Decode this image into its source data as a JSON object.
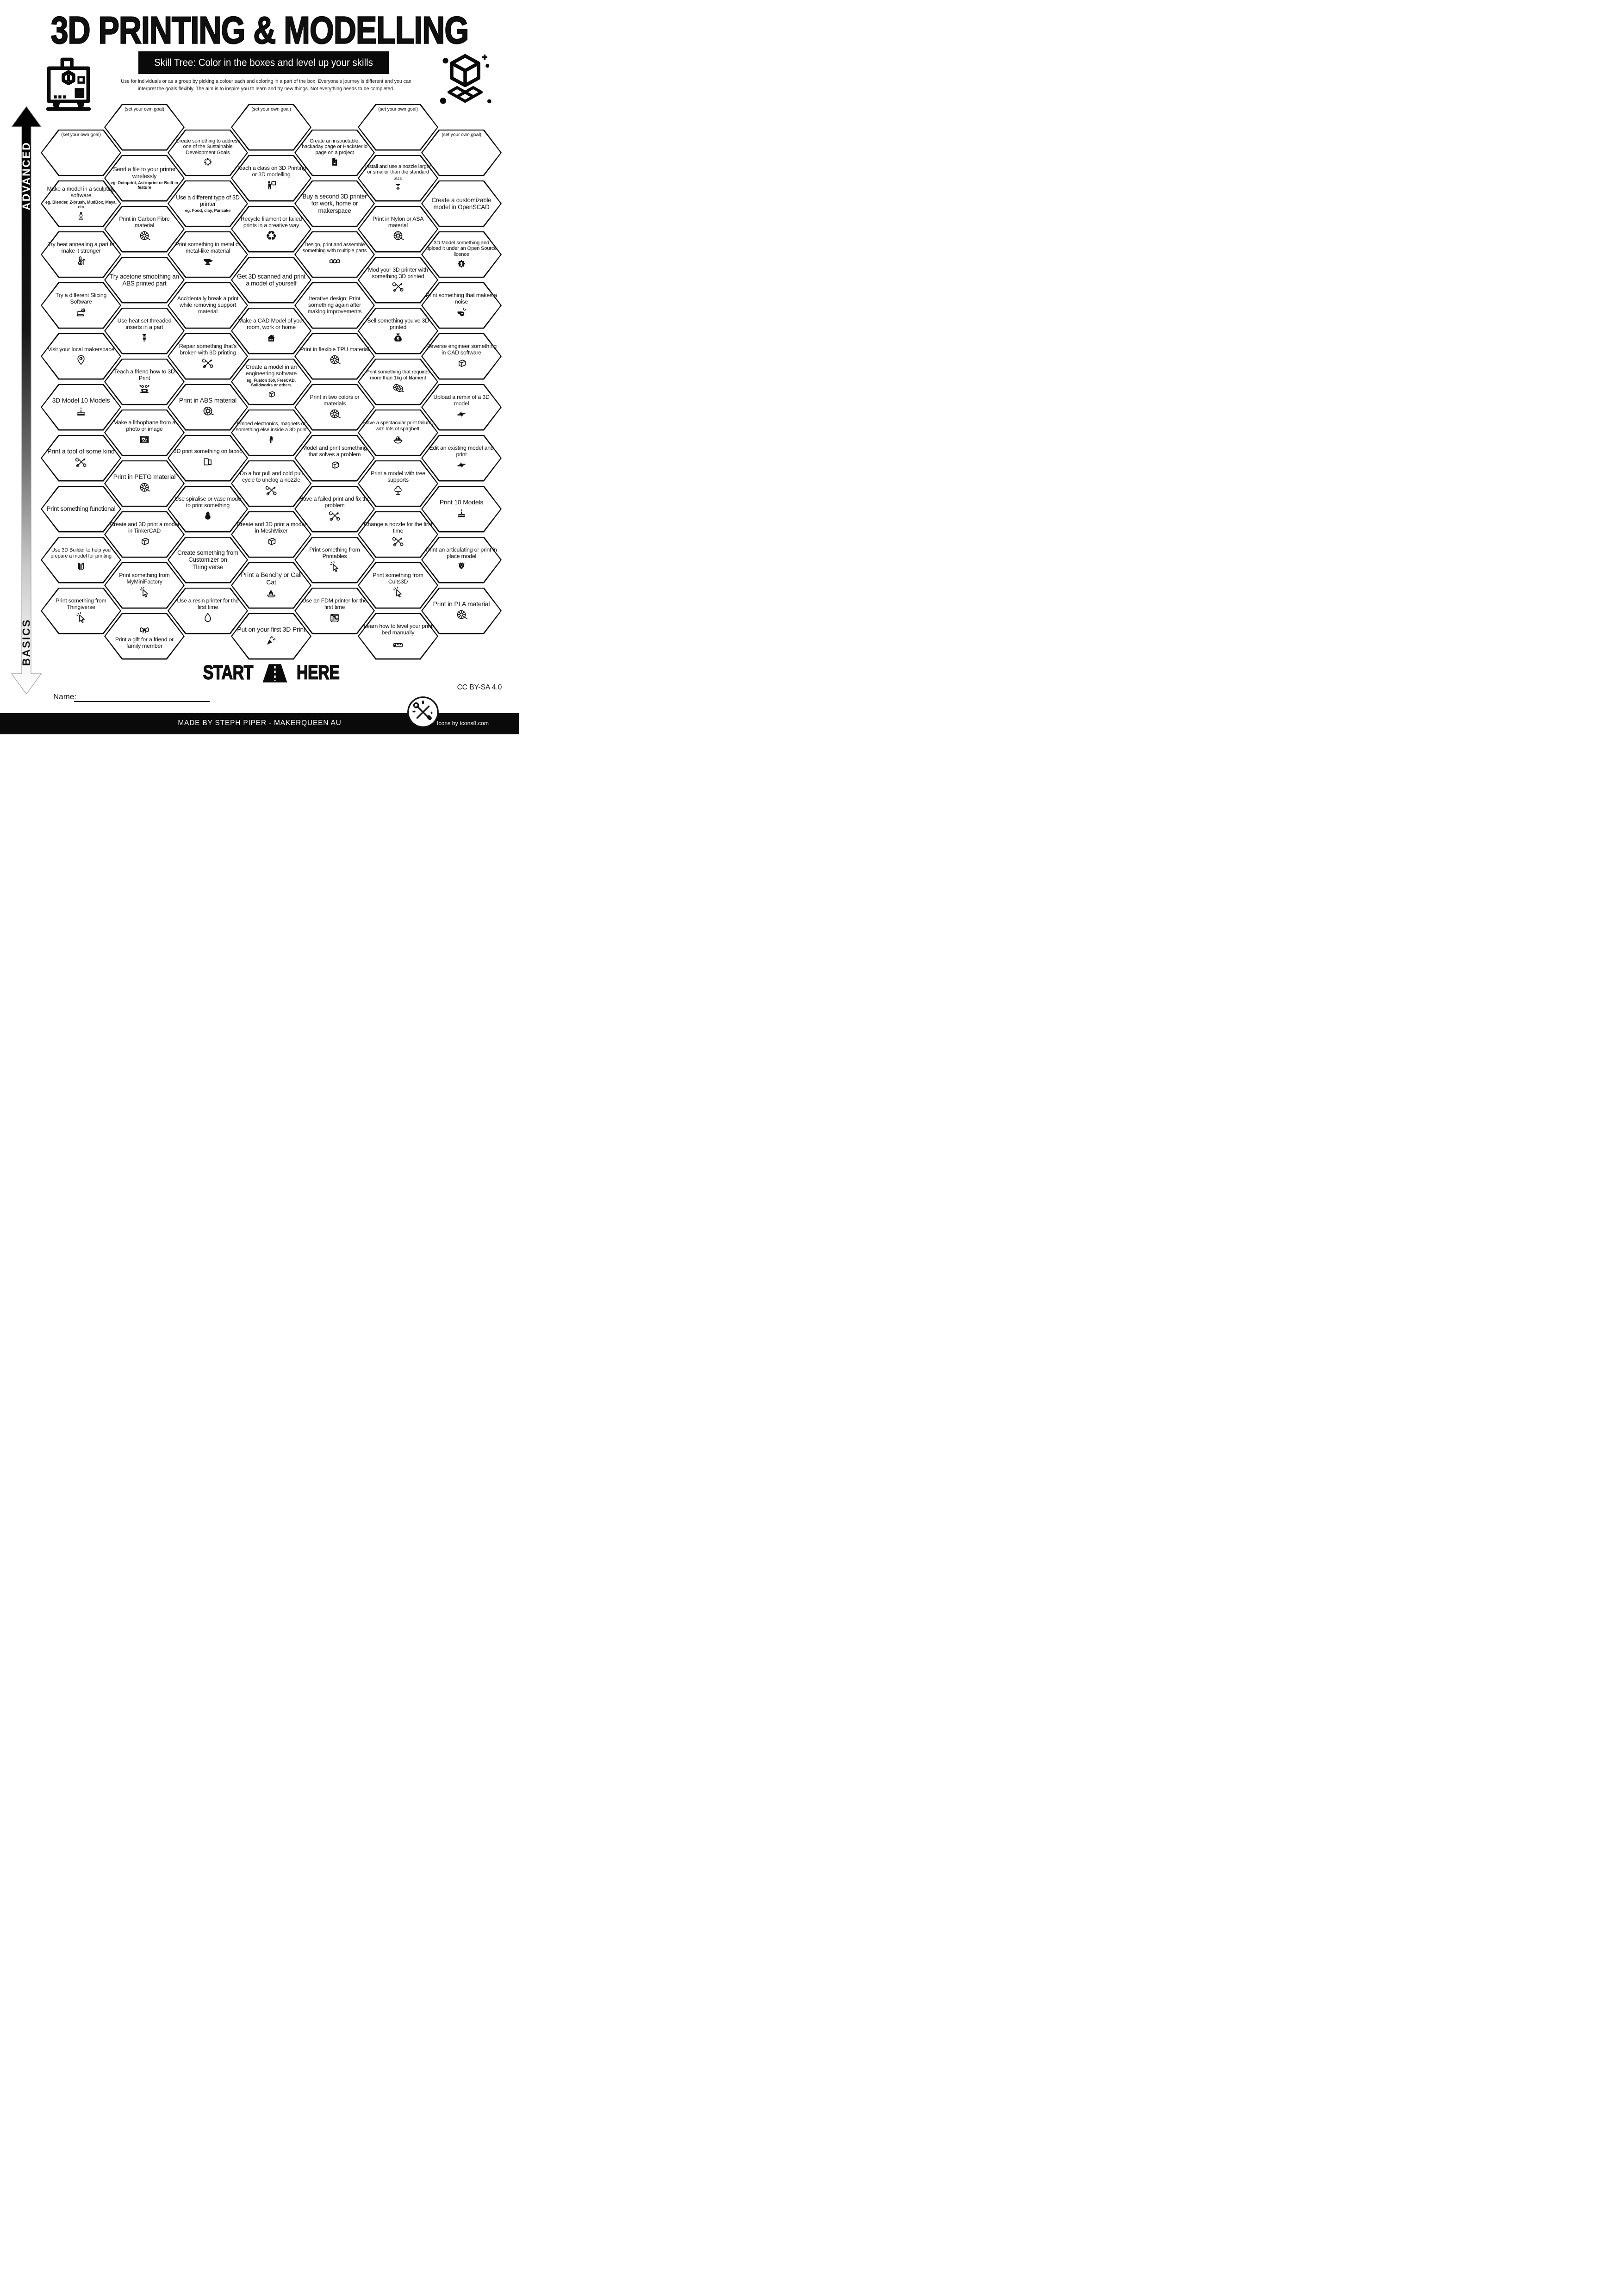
{
  "header": {
    "title": "3D PRINTING & MODELLING",
    "subtitle": "Skill Tree:  Color in the boxes and level up your skills",
    "description_line1": "Use for individuals or as a group by picking a colour each and coloring in a part of the box.  Everyone's journey is different and you can",
    "description_line2": "interpret the goals flexibly.  The aim is to inspire you to learn and try new things. Not everything needs to be completed."
  },
  "axis": {
    "top_label": "ADVANCED",
    "bottom_label": "BASICS"
  },
  "start": {
    "word_left": "START",
    "word_right": "HERE"
  },
  "footer": {
    "name_label": "Name:",
    "credit": "MADE BY STEPH PIPER  -  MAKERQUEEN AU",
    "license": "CC BY-SA 4.0",
    "icons_credit": "Icons by Icons8.com"
  },
  "colors": {
    "ink": "#0a0a0a",
    "paper": "#ffffff"
  },
  "hexes": [
    {
      "col": 1,
      "row": 0,
      "goal": true,
      "label": "(set your own goal)"
    },
    {
      "col": 1,
      "row": 1,
      "label": "Make a model in a sculpting software",
      "sub": "eg. Blender, Z-brush, MudBox, Maya, etc",
      "icon": "statue"
    },
    {
      "col": 1,
      "row": 2,
      "label": "Try heat annealing a part to make it stronger",
      "icon": "thermo"
    },
    {
      "col": 1,
      "row": 3,
      "label": "Try a different Slicing Software",
      "icon": "laptop-gear"
    },
    {
      "col": 1,
      "row": 4,
      "label": "Visit your local makerspace",
      "icon": "map-pin"
    },
    {
      "col": 1,
      "row": 5,
      "label": "3D Model 10 Models",
      "icon": "cake"
    },
    {
      "col": 1,
      "row": 6,
      "label": "Print a tool of some kind",
      "icon": "tools"
    },
    {
      "col": 1,
      "row": 7,
      "label": "Print something functional"
    },
    {
      "col": 1,
      "row": 8,
      "label": "Use 3D Builder to help you prepare a model for printing",
      "icon": "builder3d"
    },
    {
      "col": 1,
      "row": 9,
      "label": "Print something from Thingiverse",
      "icon": "cursor"
    },
    {
      "col": 2,
      "row": 0,
      "goal": true,
      "label": "(set your own goal)"
    },
    {
      "col": 2,
      "row": 1,
      "label": "Send a file to your printer wirelessly",
      "sub": "eg. Octoprint, Astroprint or Built-in feature"
    },
    {
      "col": 2,
      "row": 2,
      "label": "Print in Carbon Fibre material",
      "icon": "spool"
    },
    {
      "col": 2,
      "row": 3,
      "label": "Try acetone smoothing an ABS printed part"
    },
    {
      "col": 2,
      "row": 4,
      "label": "Use heat set threaded inserts in a part",
      "icon": "insert"
    },
    {
      "col": 2,
      "row": 5,
      "label": "Teach a friend how to 3D Print",
      "icon": "people"
    },
    {
      "col": 2,
      "row": 6,
      "label": "Make a lithophane from a photo or image",
      "icon": "image-frame"
    },
    {
      "col": 2,
      "row": 7,
      "label": "Print in PETG material",
      "icon": "spool"
    },
    {
      "col": 2,
      "row": 8,
      "label": "Create and 3D print a model in TinkerCAD",
      "icon": "cube"
    },
    {
      "col": 2,
      "row": 9,
      "label": "Print something from MyMiniFactory",
      "icon": "cursor"
    },
    {
      "col": 2,
      "row": 10,
      "label": "Print a gift for a friend or family member",
      "icon": "bow",
      "iconPos": "top"
    },
    {
      "col": 3,
      "row": 0,
      "label": "Create something to address one of the Sustainable Development Goals",
      "icon": "sdg"
    },
    {
      "col": 3,
      "row": 1,
      "label": "Use a different type of 3D printer",
      "sub": "eg. Food, clay, Pancake"
    },
    {
      "col": 3,
      "row": 2,
      "label": "Print something in metal or metal-like material",
      "icon": "anvil"
    },
    {
      "col": 3,
      "row": 3,
      "label": "Accidentally break a print while removing support material"
    },
    {
      "col": 3,
      "row": 4,
      "label": "Repair something that's broken with 3D printing",
      "icon": "tools"
    },
    {
      "col": 3,
      "row": 5,
      "label": "Print in ABS material",
      "icon": "spool"
    },
    {
      "col": 3,
      "row": 6,
      "label": "3D print something on fabric",
      "icon": "fabric"
    },
    {
      "col": 3,
      "row": 7,
      "label": "Use spiralise or vase mode to print something",
      "icon": "vase"
    },
    {
      "col": 3,
      "row": 8,
      "label": "Create something from Customizer on Thingiverse"
    },
    {
      "col": 3,
      "row": 9,
      "label": "Use a resin printer for the first time",
      "icon": "droplet"
    },
    {
      "col": 4,
      "row": 0,
      "goal": true,
      "label": "(set your own goal)"
    },
    {
      "col": 4,
      "row": 1,
      "label": "Teach a class on 3D Printing or 3D modelling",
      "icon": "teacher"
    },
    {
      "col": 4,
      "row": 2,
      "label": "Recycle filament or failed prints in a creative way",
      "icon": "recycle"
    },
    {
      "col": 4,
      "row": 3,
      "label": "Get 3D scanned and print a model of yourself"
    },
    {
      "col": 4,
      "row": 4,
      "label": "Make a CAD Model of your room, work or home",
      "icon": "house"
    },
    {
      "col": 4,
      "row": 5,
      "label": "Create a model in an engineering software",
      "sub": "eg. Fusion 360, FreeCAD, Solidworks or others",
      "icon": "cube"
    },
    {
      "col": 4,
      "row": 6,
      "label": "Embed electronics, magnets or something else inside a 3D print",
      "icon": "led"
    },
    {
      "col": 4,
      "row": 7,
      "label": "Do a hot pull and cold pull cycle to unclog a nozzle",
      "icon": "tools"
    },
    {
      "col": 4,
      "row": 8,
      "label": "Create and 3D print a model in MeshMixer",
      "icon": "cube"
    },
    {
      "col": 4,
      "row": 9,
      "label": "Print a Benchy or Cali Cat",
      "icon": "benchy"
    },
    {
      "col": 4,
      "row": 10,
      "label": "Put on your first 3D Print",
      "icon": "popper"
    },
    {
      "col": 5,
      "row": 0,
      "label": "Create an instructable, hackaday page or Hackster.io page on a project",
      "icon": "file-smiley"
    },
    {
      "col": 5,
      "row": 1,
      "label": "Buy a second 3D printer for work, home or makerspace"
    },
    {
      "col": 5,
      "row": 2,
      "label": "Design, print and assemble something with multiple parts",
      "icon": "cubes3"
    },
    {
      "col": 5,
      "row": 3,
      "label": "Iterative design: Print something again after making improvements"
    },
    {
      "col": 5,
      "row": 4,
      "label": "Print in flexible TPU material",
      "icon": "spool"
    },
    {
      "col": 5,
      "row": 5,
      "label": "Print in two colors or materials",
      "icon": "spool"
    },
    {
      "col": 5,
      "row": 6,
      "label": "Model and print something that solves a problem",
      "icon": "cube"
    },
    {
      "col": 5,
      "row": 7,
      "label": "Have a failed print and fix the problem",
      "icon": "tools"
    },
    {
      "col": 5,
      "row": 8,
      "label": "Print something from Printables",
      "icon": "cursor"
    },
    {
      "col": 5,
      "row": 9,
      "label": "Use an FDM printer for the first time",
      "icon": "printer"
    },
    {
      "col": 6,
      "row": 0,
      "goal": true,
      "label": "(set your own goal)"
    },
    {
      "col": 6,
      "row": 1,
      "label": "Install and use a nozzle larger or smaller than the standard size",
      "icon": "nozzle"
    },
    {
      "col": 6,
      "row": 2,
      "label": "Print in Nylon or ASA material",
      "icon": "spool"
    },
    {
      "col": 6,
      "row": 3,
      "label": "Mod your 3D printer with something 3D printed",
      "icon": "tools"
    },
    {
      "col": 6,
      "row": 4,
      "label": "Sell something you've 3D printed",
      "icon": "moneybag"
    },
    {
      "col": 6,
      "row": 5,
      "label": "Print something that requires more than 1kg of filament",
      "icon": "spool2"
    },
    {
      "col": 6,
      "row": 6,
      "label": "Have a spectacular print failure, with lots of spaghetti",
      "icon": "spaghetti"
    },
    {
      "col": 6,
      "row": 7,
      "label": "Print a model with tree supports",
      "icon": "tree"
    },
    {
      "col": 6,
      "row": 8,
      "label": "Change a nozzle for the first time",
      "icon": "tools"
    },
    {
      "col": 6,
      "row": 9,
      "label": "Print something from Cults3D",
      "icon": "cursor"
    },
    {
      "col": 6,
      "row": 10,
      "label": "Learn how to level your print bed manually",
      "icon": "ruler"
    },
    {
      "col": 7,
      "row": 0,
      "goal": true,
      "label": "(set your own goal)"
    },
    {
      "col": 7,
      "row": 1,
      "label": "Create a customizable model in OpenSCAD"
    },
    {
      "col": 7,
      "row": 2,
      "label": "3D Model something and upload it under an Open Source licence",
      "icon": "gear-keyhole"
    },
    {
      "col": 7,
      "row": 3,
      "label": "Print something that makes a noise",
      "icon": "whistle"
    },
    {
      "col": 7,
      "row": 4,
      "label": "Reverse engineer something in CAD software",
      "icon": "cube"
    },
    {
      "col": 7,
      "row": 5,
      "label": "Upload a remix of a 3D model",
      "icon": "remix"
    },
    {
      "col": 7,
      "row": 6,
      "label": "Edit an existing model and print",
      "icon": "remix"
    },
    {
      "col": 7,
      "row": 7,
      "label": "Print 10 Models",
      "icon": "cake"
    },
    {
      "col": 7,
      "row": 8,
      "label": "Print an articulating or print in place model",
      "icon": "dragon"
    },
    {
      "col": 7,
      "row": 9,
      "label": "Print in PLA material",
      "icon": "spool"
    }
  ]
}
